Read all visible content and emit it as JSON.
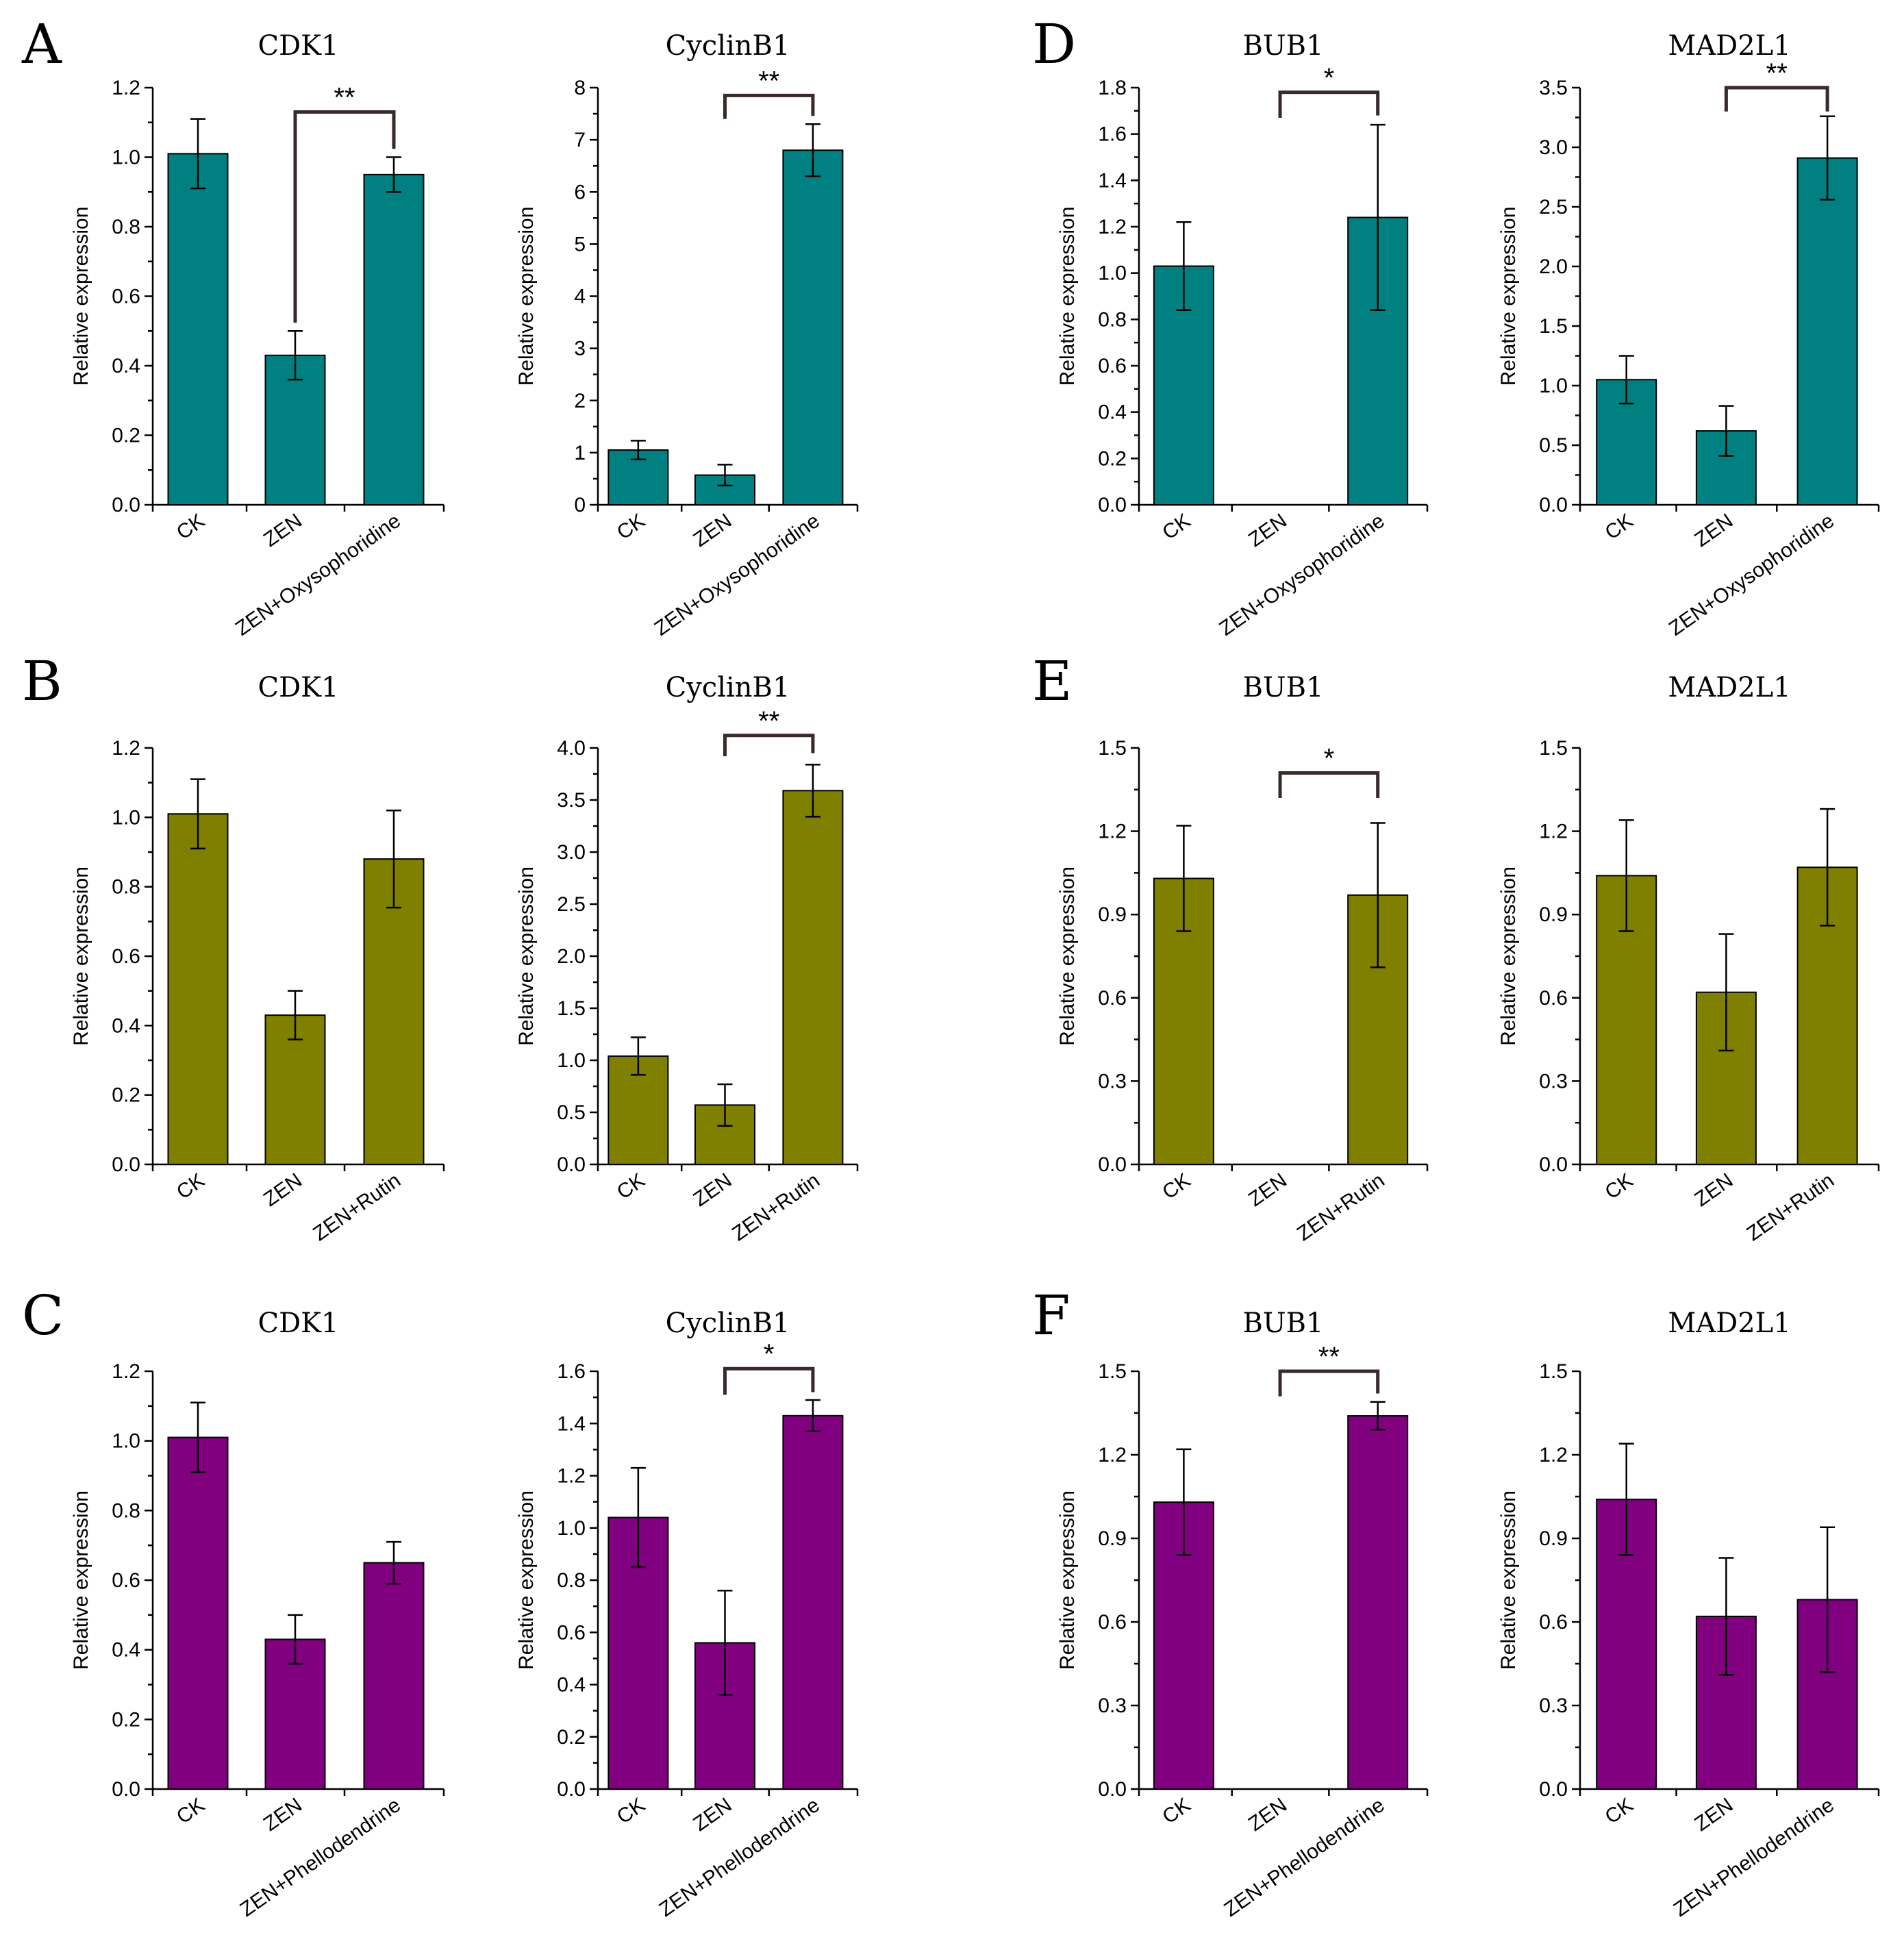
{
  "ylabel": "Relative expression",
  "colors": {
    "teal": "#008080",
    "olive": "#808000",
    "purple": "#800080"
  },
  "panel_labels": [
    "A",
    "B",
    "C",
    "D",
    "E",
    "F"
  ],
  "chart_data": [
    {
      "type": "bar",
      "panel": "A",
      "title": "CDK1",
      "categories": [
        "CK",
        "ZEN",
        "ZEN+Oxysophoridine"
      ],
      "values": [
        1.01,
        0.43,
        0.95
      ],
      "errors": [
        0.1,
        0.07,
        0.05
      ],
      "ylabel": "Relative expression",
      "ylim": [
        0,
        1.2
      ],
      "yticks": [
        "0.0",
        "0.2",
        "0.4",
        "0.6",
        "0.8",
        "1.0",
        "1.2"
      ],
      "minor_ticks": 1,
      "significance": {
        "from": 1,
        "to": 2,
        "label": "**",
        "level": 1.13
      },
      "color": "teal"
    },
    {
      "type": "bar",
      "panel": "",
      "title": "CyclinB1",
      "categories": [
        "CK",
        "ZEN",
        "ZEN+Oxysophoridine"
      ],
      "values": [
        1.05,
        0.57,
        6.8
      ],
      "errors": [
        0.18,
        0.2,
        0.5
      ],
      "ylabel": "Relative expression",
      "ylim": [
        0,
        8
      ],
      "yticks": [
        "0",
        "1",
        "2",
        "3",
        "4",
        "5",
        "6",
        "7",
        "8"
      ],
      "minor_ticks": 1,
      "significance": {
        "from": 1,
        "to": 2,
        "label": "**",
        "level": 7.85,
        "left": 7.4
      },
      "color": "teal"
    },
    {
      "type": "bar",
      "panel": "D",
      "title": "BUB1",
      "categories": [
        "CK",
        "ZEN",
        "ZEN+Oxysophoridine"
      ],
      "values": [
        1.03,
        0,
        1.24
      ],
      "errors": [
        0.19,
        0,
        0.4
      ],
      "ylabel": "Relative expression",
      "ylim": [
        0,
        1.8
      ],
      "yticks": [
        "0.0",
        "0.2",
        "0.4",
        "0.6",
        "0.8",
        "1.0",
        "1.2",
        "1.4",
        "1.6",
        "1.8"
      ],
      "minor_ticks": 1,
      "significance": {
        "from": 1,
        "to": 2,
        "label": "*",
        "level": 1.78,
        "left": 1.67,
        "right": 1.68
      },
      "color": "teal"
    },
    {
      "type": "bar",
      "panel": "",
      "title": "MAD2L1",
      "categories": [
        "CK",
        "ZEN",
        "ZEN+Oxysophoridine"
      ],
      "values": [
        1.05,
        0.62,
        2.91
      ],
      "errors": [
        0.2,
        0.21,
        0.35
      ],
      "ylabel": "Relative expression",
      "ylim": [
        0,
        3.5
      ],
      "yticks": [
        "0.0",
        "0.5",
        "1.0",
        "1.5",
        "2.0",
        "2.5",
        "3.0",
        "3.5"
      ],
      "minor_ticks": 1,
      "significance": {
        "from": 1,
        "to": 2,
        "label": "**",
        "level": 3.5,
        "left": 3.3,
        "right": 3.3
      },
      "color": "teal"
    },
    {
      "type": "bar",
      "panel": "B",
      "title": "CDK1",
      "categories": [
        "CK",
        "ZEN",
        "ZEN+Rutin"
      ],
      "values": [
        1.01,
        0.43,
        0.88
      ],
      "errors": [
        0.1,
        0.07,
        0.14
      ],
      "ylabel": "Relative expression",
      "ylim": [
        0,
        1.2
      ],
      "yticks": [
        "0.0",
        "0.2",
        "0.4",
        "0.6",
        "0.8",
        "1.0",
        "1.2"
      ],
      "minor_ticks": 1,
      "color": "olive"
    },
    {
      "type": "bar",
      "panel": "",
      "title": "CyclinB1",
      "categories": [
        "CK",
        "ZEN",
        "ZEN+Rutin"
      ],
      "values": [
        1.04,
        0.57,
        3.59
      ],
      "errors": [
        0.18,
        0.2,
        0.25
      ],
      "ylabel": "Relative expression",
      "ylim": [
        0,
        4.0
      ],
      "yticks": [
        "0.0",
        "0.5",
        "1.0",
        "1.5",
        "2.0",
        "2.5",
        "3.0",
        "3.5",
        "4.0"
      ],
      "minor_ticks": 1,
      "significance": {
        "from": 1,
        "to": 2,
        "label": "**",
        "level": 4.12,
        "left": 3.92,
        "right": 3.95
      },
      "color": "olive"
    },
    {
      "type": "bar",
      "panel": "E",
      "title": "BUB1",
      "categories": [
        "CK",
        "ZEN",
        "ZEN+Rutin"
      ],
      "values": [
        1.03,
        0,
        0.97
      ],
      "errors": [
        0.19,
        0,
        0.26
      ],
      "ylabel": "Relative expression",
      "ylim": [
        0,
        1.5
      ],
      "yticks": [
        "0.0",
        "0.3",
        "0.6",
        "0.9",
        "1.2",
        "1.5"
      ],
      "minor_ticks": 1,
      "significance": {
        "from": 1,
        "to": 2,
        "label": "*",
        "level": 1.41,
        "left": 1.32,
        "right": 1.32
      },
      "color": "olive"
    },
    {
      "type": "bar",
      "panel": "",
      "title": "MAD2L1",
      "categories": [
        "CK",
        "ZEN",
        "ZEN+Rutin"
      ],
      "values": [
        1.04,
        0.62,
        1.07
      ],
      "errors": [
        0.2,
        0.21,
        0.21
      ],
      "ylabel": "Relative expression",
      "ylim": [
        0,
        1.5
      ],
      "yticks": [
        "0.0",
        "0.3",
        "0.6",
        "0.9",
        "1.2",
        "1.5"
      ],
      "minor_ticks": 1,
      "color": "olive"
    },
    {
      "type": "bar",
      "panel": "C",
      "title": "CDK1",
      "categories": [
        "CK",
        "ZEN",
        "ZEN+Phellodendrine"
      ],
      "values": [
        1.01,
        0.43,
        0.65
      ],
      "errors": [
        0.1,
        0.07,
        0.06
      ],
      "ylabel": "Relative expression",
      "ylim": [
        0,
        1.2
      ],
      "yticks": [
        "0.0",
        "0.2",
        "0.4",
        "0.6",
        "0.8",
        "1.0",
        "1.2"
      ],
      "minor_ticks": 1,
      "color": "purple"
    },
    {
      "type": "bar",
      "panel": "",
      "title": "CyclinB1",
      "categories": [
        "CK",
        "ZEN",
        "ZEN+Phellodendrine"
      ],
      "values": [
        1.04,
        0.56,
        1.43
      ],
      "errors": [
        0.19,
        0.2,
        0.06
      ],
      "ylabel": "Relative expression",
      "ylim": [
        0,
        1.6
      ],
      "yticks": [
        "0.0",
        "0.2",
        "0.4",
        "0.6",
        "0.8",
        "1.0",
        "1.2",
        "1.4",
        "1.6"
      ],
      "minor_ticks": 1,
      "significance": {
        "from": 1,
        "to": 2,
        "label": "*",
        "level": 1.61,
        "left": 1.51,
        "right": 1.52
      },
      "color": "purple"
    },
    {
      "type": "bar",
      "panel": "F",
      "title": "BUB1",
      "categories": [
        "CK",
        "ZEN",
        "ZEN+Phellodendrine"
      ],
      "values": [
        1.03,
        0,
        1.34
      ],
      "errors": [
        0.19,
        0,
        0.05
      ],
      "ylabel": "Relative expression",
      "ylim": [
        0,
        1.5
      ],
      "yticks": [
        "0.0",
        "0.3",
        "0.6",
        "0.9",
        "1.2",
        "1.5"
      ],
      "minor_ticks": 1,
      "significance": {
        "from": 1,
        "to": 2,
        "label": "**",
        "level": 1.5,
        "left": 1.41,
        "right": 1.42
      },
      "color": "purple"
    },
    {
      "type": "bar",
      "panel": "",
      "title": "MAD2L1",
      "categories": [
        "CK",
        "ZEN",
        "ZEN+Phellodendrine"
      ],
      "values": [
        1.04,
        0.62,
        0.68
      ],
      "errors": [
        0.2,
        0.21,
        0.26
      ],
      "ylabel": "Relative expression",
      "ylim": [
        0,
        1.5
      ],
      "yticks": [
        "0.0",
        "0.3",
        "0.6",
        "0.9",
        "1.2",
        "1.5"
      ],
      "minor_ticks": 1,
      "color": "purple"
    }
  ]
}
